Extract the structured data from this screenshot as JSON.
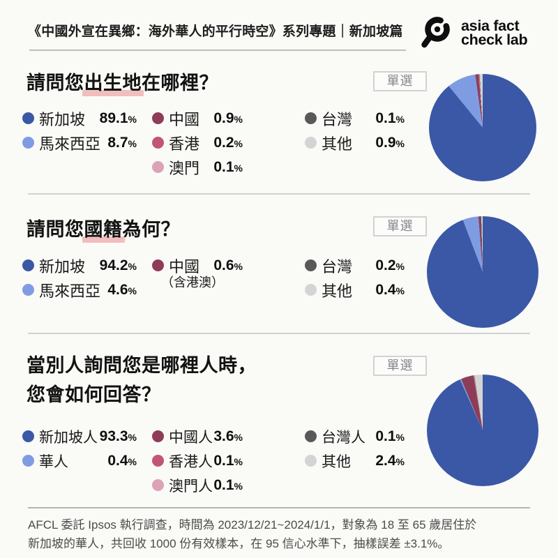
{
  "page": {
    "background": "#FAFAF7",
    "header": {
      "title": "《中國外宣在異鄉：海外華人的平行時空》系列專題｜新加坡篇",
      "logo_line1": "asia fact",
      "logo_line2": "check lab"
    },
    "footer": {
      "line1": "AFCL 委託 Ipsos 執行調查，時間為 2023/12/21~2024/1/1，對象為 18 至 65 歲居住於",
      "line2": "新加坡的華人，共回收 1000 份有效樣本，在 95 信心水準下，抽樣誤差 ±3.1%。"
    }
  },
  "chart_data": [
    {
      "type": "pie",
      "title": "請問您出生地在哪裡？",
      "title_pre": "請問您",
      "title_highlight": "出生地",
      "title_post": "在哪裡？",
      "badge": "單選",
      "labels": [
        "新加坡",
        "馬來西亞",
        "中國",
        "香港",
        "澳門",
        "台灣",
        "其他"
      ],
      "values": [
        89.1,
        8.7,
        0.9,
        0.2,
        0.1,
        0.1,
        0.9
      ],
      "colors": [
        "#3B58A6",
        "#7F9CE3",
        "#8E3D58",
        "#C05578",
        "#DCA2B5",
        "#595959",
        "#D4D4D4"
      ],
      "value_suffix": "%",
      "start_angle_deg": 0,
      "direction": "clockwise",
      "legend_position": "left",
      "legend_columns": [
        [
          0,
          1
        ],
        [
          2,
          3,
          4
        ],
        [
          5,
          6
        ]
      ]
    },
    {
      "type": "pie",
      "title": "請問您國籍為何？",
      "title_pre": "請問您",
      "title_highlight": "國籍",
      "title_post": "為何？",
      "badge": "單選",
      "labels": [
        "新加坡",
        "馬來西亞",
        "中國",
        "台灣",
        "其他"
      ],
      "values": [
        94.2,
        4.6,
        0.6,
        0.2,
        0.4
      ],
      "colors": [
        "#3B58A6",
        "#7F9CE3",
        "#8E3D58",
        "#595959",
        "#D4D4D4"
      ],
      "value_suffix": "%",
      "note": {
        "after_index": 2,
        "text": "（含港澳）"
      },
      "start_angle_deg": 0,
      "direction": "clockwise",
      "legend_position": "left",
      "legend_columns": [
        [
          0,
          1
        ],
        [
          2
        ],
        [
          3,
          4
        ]
      ]
    },
    {
      "type": "pie",
      "title": "當別人詢問您是哪裡人時，您會如何回答？",
      "title_line1": "當別人詢問您是哪裡人時，",
      "title_line2": "您會如何回答？",
      "badge": "單選",
      "labels": [
        "新加坡人",
        "華人",
        "中國人",
        "香港人",
        "澳門人",
        "台灣人",
        "其他"
      ],
      "values": [
        93.3,
        0.4,
        3.6,
        0.1,
        0.1,
        0.1,
        2.4
      ],
      "colors": [
        "#3B58A6",
        "#7F9CE3",
        "#8E3D58",
        "#C05578",
        "#DCA2B5",
        "#595959",
        "#D4D4D4"
      ],
      "value_suffix": "%",
      "start_angle_deg": 0,
      "direction": "clockwise",
      "legend_position": "left",
      "legend_columns": [
        [
          0,
          1
        ],
        [
          2,
          3,
          4
        ],
        [
          5,
          6
        ]
      ]
    }
  ]
}
